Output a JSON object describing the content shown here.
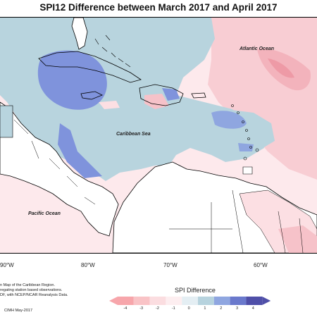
{
  "title": "SPI12 Difference between March 2017 and April 2017",
  "labels": {
    "atlantic": "Atlantic Ocean",
    "caribbean": "Caribbean Sea",
    "pacific": "Pacific Ocean"
  },
  "longitudes": [
    "90°W",
    "80°W",
    "70°W",
    "60°W"
  ],
  "credit": {
    "line1": "n Map of the Caribbean Region.",
    "line2": "regating station based observations.",
    "line3": "DF, with NCEP/NCAR Reanalysis Data.",
    "line4": "CIMH May-2017"
  },
  "legend": {
    "title": "SPI Difference",
    "ticks": [
      "-4",
      "-3",
      "-2",
      "-1",
      "0",
      "1",
      "2",
      "3",
      "4"
    ],
    "colors": [
      "#f7a6ab",
      "#f9c3c6",
      "#fbdde0",
      "#fdeef0",
      "#e4eef3",
      "#b7d3de",
      "#8fa6e0",
      "#6a79cc",
      "#4f4fa8"
    ]
  },
  "colors": {
    "land": "#ffffff",
    "neutral_sea": "#fde9ec",
    "light_pink": "#fcdfe3",
    "pink": "#f6c2c9",
    "light_blue": "#b8d4de",
    "mid_blue": "#7f93dc",
    "coast": "#000000"
  }
}
